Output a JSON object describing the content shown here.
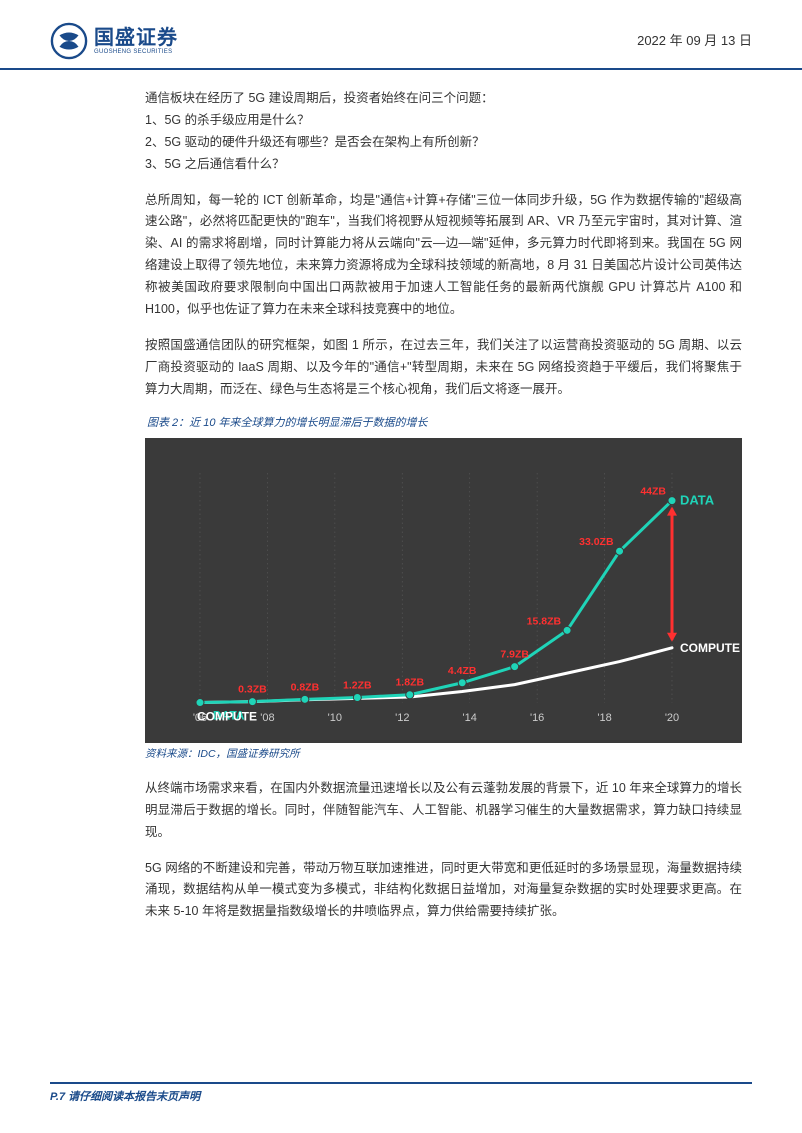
{
  "header": {
    "logo_main": "国盛证券",
    "logo_sub": "GUOSHENG SECURITIES",
    "date": "2022 年 09 月 13 日"
  },
  "body": {
    "p1": "通信板块在经历了 5G 建设周期后，投资者始终在问三个问题：",
    "p1a": "1、5G 的杀手级应用是什么？",
    "p1b": "2、5G 驱动的硬件升级还有哪些？是否会在架构上有所创新？",
    "p1c": "3、5G 之后通信看什么？",
    "p2": "总所周知，每一轮的 ICT 创新革命，均是\"通信+计算+存储\"三位一体同步升级，5G 作为数据传输的\"超级高速公路\"，必然将匹配更快的\"跑车\"，当我们将视野从短视频等拓展到 AR、VR 乃至元宇宙时，其对计算、渲染、AI 的需求将剧增，同时计算能力将从云端向\"云—边—端\"延伸，多元算力时代即将到来。我国在 5G 网络建设上取得了领先地位，未来算力资源将成为全球科技领域的新高地，8 月 31 日美国芯片设计公司英伟达称被美国政府要求限制向中国出口两款被用于加速人工智能任务的最新两代旗舰 GPU 计算芯片 A100 和 H100，似乎也佐证了算力在未来全球科技竞赛中的地位。",
    "p3": "按照国盛通信团队的研究框架，如图 1 所示，在过去三年，我们关注了以运营商投资驱动的 5G 周期、以云厂商投资驱动的 IaaS 周期、以及今年的\"通信+\"转型周期，未来在 5G 网络投资趋于平缓后，我们将聚焦于算力大周期，而泛在、绿色与生态将是三个核心视角，我们后文将逐一展开。",
    "chart_title": "图表 2：近 10 年来全球算力的增长明显滞后于数据的增长",
    "chart_source": "资料来源：IDC，国盛证券研究所",
    "p4": "从终端市场需求来看，在国内外数据流量迅速增长以及公有云蓬勃发展的背景下，近 10 年来全球算力的增长明显滞后于数据的增长。同时，伴随智能汽车、人工智能、机器学习催生的大量数据需求，算力缺口持续显现。",
    "p5": "5G 网络的不断建设和完善，带动万物互联加速推进，同时更大带宽和更低延时的多场景显现，海量数据持续涌现，数据结构从单一模式变为多模式，非结构化数据日益增加，对海量复杂数据的实时处理要求更高。在未来 5-10 年将是数据量指数级增长的井喷临界点，算力供给需要持续扩张。"
  },
  "chart": {
    "type": "line",
    "background_color": "#3a3a3a",
    "data_line_color": "#1fd4b8",
    "compute_line_color": "#ffffff",
    "arrow_color": "#ff3030",
    "label_color_data": "#1fd4b8",
    "label_color_compute": "#ffffff",
    "value_label_color": "#ff3030",
    "grid_color": "#555555",
    "years": [
      "'06",
      "'08",
      "'10",
      "'12",
      "'14",
      "'16",
      "'18",
      "'20"
    ],
    "data_values": [
      0.1,
      0.3,
      0.8,
      1.2,
      1.8,
      4.4,
      7.9,
      15.8,
      33.0,
      44.0
    ],
    "data_labels": [
      "0.3ZB",
      "0.8ZB",
      "1.2ZB",
      "1.8ZB",
      "4.4ZB",
      "7.9ZB",
      "15.8ZB",
      "33.0ZB",
      "44ZB"
    ],
    "compute_values": [
      0.1,
      0.3,
      0.7,
      1.0,
      1.3,
      2.5,
      4.0,
      6.5,
      9.0,
      12.0
    ],
    "axis_text_color": "#cccccc",
    "font_size_labels": 11,
    "font_size_axis": 11,
    "line_width_data": 3,
    "line_width_compute": 3,
    "marker_radius": 4,
    "xlim": [
      2006,
      2020
    ],
    "data_legend": "DATA",
    "compute_legend": "COMPUTE"
  },
  "footer": {
    "text": "P.7 请仔细阅读本报告末页声明"
  }
}
